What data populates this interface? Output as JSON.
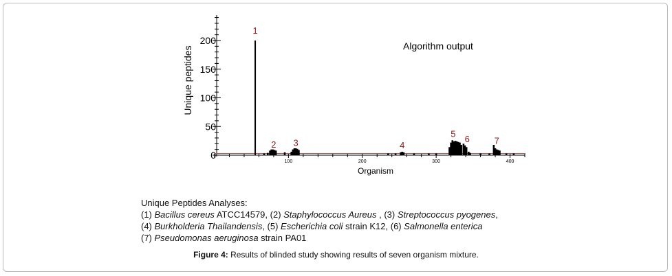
{
  "chart_data": {
    "type": "bar",
    "title": "",
    "annotation": "Algorithm output",
    "xlabel": "Organism",
    "ylabel": "Unique peptides",
    "xlim": [
      0,
      420
    ],
    "ylim": [
      0,
      240
    ],
    "x_ticks": [
      100,
      200,
      300,
      400
    ],
    "y_ticks": [
      0,
      50,
      100,
      150,
      200
    ],
    "grid": false,
    "baseline_value": 3,
    "bars": [
      {
        "x": 55,
        "y": 200
      },
      {
        "x": 67,
        "y": 3
      },
      {
        "x": 72,
        "y": 4
      },
      {
        "x": 75,
        "y": 8
      },
      {
        "x": 77,
        "y": 10
      },
      {
        "x": 79,
        "y": 10
      },
      {
        "x": 81,
        "y": 9
      },
      {
        "x": 83,
        "y": 8
      },
      {
        "x": 95,
        "y": 5
      },
      {
        "x": 104,
        "y": 6
      },
      {
        "x": 106,
        "y": 10
      },
      {
        "x": 108,
        "y": 12
      },
      {
        "x": 110,
        "y": 12
      },
      {
        "x": 112,
        "y": 11
      },
      {
        "x": 114,
        "y": 9
      },
      {
        "x": 235,
        "y": 3
      },
      {
        "x": 245,
        "y": 3
      },
      {
        "x": 252,
        "y": 5
      },
      {
        "x": 254,
        "y": 6
      },
      {
        "x": 256,
        "y": 5
      },
      {
        "x": 270,
        "y": 3
      },
      {
        "x": 290,
        "y": 3
      },
      {
        "x": 300,
        "y": 3
      },
      {
        "x": 318,
        "y": 14
      },
      {
        "x": 320,
        "y": 22
      },
      {
        "x": 322,
        "y": 26
      },
      {
        "x": 324,
        "y": 24
      },
      {
        "x": 326,
        "y": 25
      },
      {
        "x": 328,
        "y": 24
      },
      {
        "x": 330,
        "y": 23
      },
      {
        "x": 332,
        "y": 22
      },
      {
        "x": 334,
        "y": 18
      },
      {
        "x": 337,
        "y": 20
      },
      {
        "x": 339,
        "y": 17
      },
      {
        "x": 341,
        "y": 14
      },
      {
        "x": 344,
        "y": 6
      },
      {
        "x": 346,
        "y": 4
      },
      {
        "x": 360,
        "y": 3
      },
      {
        "x": 372,
        "y": 3
      },
      {
        "x": 378,
        "y": 18
      },
      {
        "x": 380,
        "y": 12
      },
      {
        "x": 382,
        "y": 10
      },
      {
        "x": 384,
        "y": 9
      },
      {
        "x": 386,
        "y": 8
      },
      {
        "x": 395,
        "y": 3
      },
      {
        "x": 405,
        "y": 3
      }
    ],
    "peak_labels": [
      {
        "text": "1",
        "x": 55,
        "y": 212
      },
      {
        "text": "2",
        "x": 80,
        "y": 13
      },
      {
        "text": "3",
        "x": 110,
        "y": 16
      },
      {
        "text": "4",
        "x": 254,
        "y": 12
      },
      {
        "text": "5",
        "x": 323,
        "y": 32
      },
      {
        "text": "6",
        "x": 342,
        "y": 23
      },
      {
        "text": "7",
        "x": 382,
        "y": 20
      }
    ],
    "colors": {
      "bars": "#000000",
      "baseline": "#c0504d",
      "labels": "#8b1a1a",
      "axis": "#000000"
    }
  },
  "analyses": {
    "heading": "Unique Peptides Analyses:",
    "lines": [
      [
        {
          "t": "(1) ",
          "i": false
        },
        {
          "t": "Bacillus cereus",
          "i": true
        },
        {
          "t": " ATCC14579, (2) ",
          "i": false
        },
        {
          "t": "Staphylococcus Aureus",
          "i": true
        },
        {
          "t": " , (3) ",
          "i": false
        },
        {
          "t": "Streptococcus pyogenes",
          "i": true
        },
        {
          "t": ",",
          "i": false
        }
      ],
      [
        {
          "t": "(4) ",
          "i": false
        },
        {
          "t": "Burkholderia Thailandensis",
          "i": true
        },
        {
          "t": ", (5) ",
          "i": false
        },
        {
          "t": "Escherichia coli",
          "i": true
        },
        {
          "t": " strain K12, (6) ",
          "i": false
        },
        {
          "t": "Salmonella  enterica",
          "i": true
        }
      ],
      [
        {
          "t": "(7) ",
          "i": false
        },
        {
          "t": "Pseudomonas aeruginosa",
          "i": true
        },
        {
          "t": " strain PA01",
          "i": false
        }
      ]
    ]
  },
  "caption": {
    "label": "Figure 4:",
    "text": " Results of blinded study showing results of seven organism mixture."
  }
}
